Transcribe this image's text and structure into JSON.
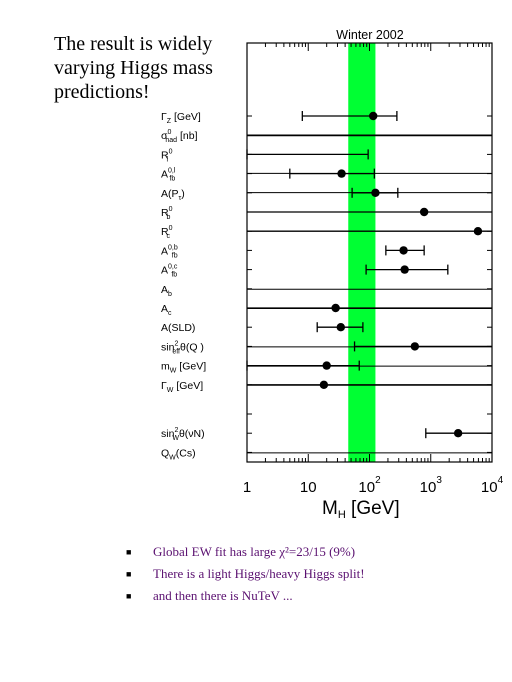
{
  "slide": {
    "title_lines": [
      "The result is widely",
      "varying Higgs mass",
      "predictions!"
    ],
    "bullets": [
      "Global EW fit has large χ²=23/15 (9%)",
      "There is a light Higgs/heavy Higgs split!",
      "and then there is NuTeV ..."
    ]
  },
  "chart_data": {
    "type": "scatter",
    "title": "Winter 2002",
    "xlabel": "M",
    "xlabel_sub": "H",
    "xlabel_unit": "[GeV]",
    "xscale": "log",
    "xlim": [
      1,
      10000
    ],
    "xticks": [
      {
        "base": "1",
        "exp": ""
      },
      {
        "base": "10",
        "exp": ""
      },
      {
        "base": "10",
        "exp": "2"
      },
      {
        "base": "10",
        "exp": "3"
      },
      {
        "base": "10",
        "exp": "4"
      }
    ],
    "band": {
      "lo": 45,
      "hi": 125,
      "color": "#00ff33"
    },
    "rows": [
      {
        "label": "Γ",
        "sub": "Z",
        "sup": "",
        "suffix": " [GeV]",
        "center": 115,
        "lo": 8,
        "hi": 280
      },
      {
        "label": "σ",
        "sub": "had",
        "sup": "0",
        "suffix": " [nb]",
        "center": null,
        "lo": null,
        "hi": null
      },
      {
        "label": "R",
        "sub": "l",
        "sup": "0",
        "suffix": "",
        "center": null,
        "lo": 1,
        "hi": 95
      },
      {
        "label": "A",
        "sub": "fb",
        "sup": "0,l",
        "suffix": "",
        "center": 35,
        "lo": 5,
        "hi": 120
      },
      {
        "label": "A(P",
        "sub": "τ",
        "sup": "",
        "suffix": ")",
        "center": 125,
        "lo": 52,
        "hi": 290
      },
      {
        "label": "R",
        "sub": "b",
        "sup": "0",
        "suffix": "",
        "center": 780,
        "lo": null,
        "hi": null
      },
      {
        "label": "R",
        "sub": "c",
        "sup": "0",
        "suffix": "",
        "center": 5900,
        "lo": null,
        "hi": null
      },
      {
        "label": "A",
        "sub": "fb",
        "sup": "0,b",
        "suffix": "",
        "center": 360,
        "lo": 185,
        "hi": 780
      },
      {
        "label": "A",
        "sub": "fb",
        "sup": "0,c",
        "suffix": "",
        "center": 375,
        "lo": 88,
        "hi": 1900
      },
      {
        "label": "A",
        "sub": "b",
        "sup": "",
        "suffix": "",
        "center": null,
        "lo": null,
        "hi": null
      },
      {
        "label": "A",
        "sub": "c",
        "sup": "",
        "suffix": "",
        "center": 28,
        "lo": null,
        "hi": null
      },
      {
        "label": "A(SLD)",
        "sub": "",
        "sup": "",
        "suffix": "",
        "center": 34,
        "lo": 14,
        "hi": 78
      },
      {
        "label": "sin",
        "sub": "eff",
        "sup": "2",
        "suffix": "θ(Q  )",
        "center": 550,
        "lo": 57,
        "hi": null
      },
      {
        "label": "m",
        "sub": "W",
        "sup": "",
        "suffix": " [GeV]",
        "center": 20,
        "lo": 1,
        "hi": 68
      },
      {
        "label": "Γ",
        "sub": "W",
        "sup": "",
        "suffix": " [GeV]",
        "center": 18,
        "lo": null,
        "hi": null
      },
      {
        "label": "",
        "sub": "",
        "sup": "",
        "suffix": "",
        "center": null,
        "lo": null,
        "hi": null
      },
      {
        "label": "sin",
        "sub": "W",
        "sup": "2",
        "suffix": "θ(νN)",
        "center": 2800,
        "lo": 830,
        "hi": null
      },
      {
        "label": "Q",
        "sub": "W",
        "sup": "",
        "suffix": "(Cs)",
        "center": null,
        "lo": null,
        "hi": null
      }
    ]
  }
}
